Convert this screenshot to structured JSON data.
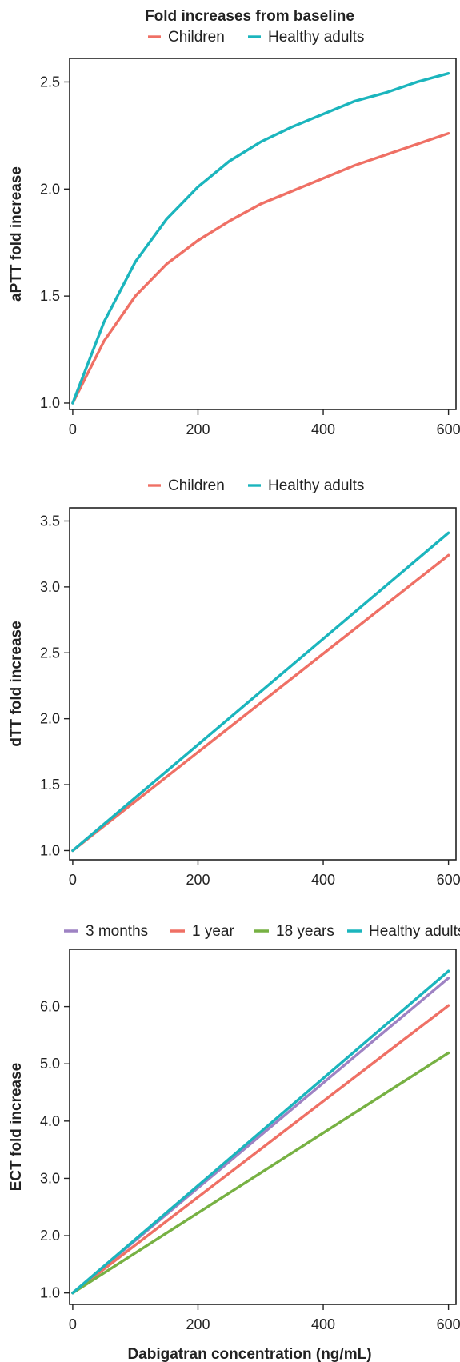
{
  "figure_title": "Fold increases from baseline",
  "x_axis_title": "Dabigatran concentration (ng/mL)",
  "colors": {
    "children": "#ef7065",
    "healthy_adults": "#1bb5bd",
    "three_months": "#9e82c3",
    "one_year": "#ef7065",
    "eighteen_years": "#77b143",
    "axis": "#222222"
  },
  "chart_data": [
    {
      "type": "line",
      "title": "Fold increases from baseline",
      "xlabel": "",
      "ylabel": "aPTT fold increase",
      "xlim": [
        -5,
        612
      ],
      "ylim": [
        0.97,
        2.61
      ],
      "xticks": [
        0,
        200,
        400,
        600
      ],
      "yticks": [
        1.0,
        1.5,
        2.0,
        2.5
      ],
      "ytick_labels": [
        "1.0",
        "1.5",
        "2.0",
        "2.5"
      ],
      "legend": "top, horizontal",
      "x": [
        0,
        50,
        100,
        150,
        200,
        250,
        300,
        350,
        400,
        450,
        500,
        550,
        600
      ],
      "series": [
        {
          "name": "Children",
          "color_key": "children",
          "values": [
            1.0,
            1.29,
            1.5,
            1.65,
            1.76,
            1.85,
            1.93,
            1.99,
            2.05,
            2.11,
            2.16,
            2.21,
            2.26
          ]
        },
        {
          "name": "Healthy adults",
          "color_key": "healthy_adults",
          "values": [
            1.0,
            1.38,
            1.66,
            1.86,
            2.01,
            2.13,
            2.22,
            2.29,
            2.35,
            2.41,
            2.45,
            2.5,
            2.54
          ]
        }
      ]
    },
    {
      "type": "line",
      "title": "",
      "xlabel": "",
      "ylabel": "dTT fold increase",
      "xlim": [
        -5,
        612
      ],
      "ylim": [
        0.93,
        3.6
      ],
      "xticks": [
        0,
        200,
        400,
        600
      ],
      "yticks": [
        1.0,
        1.5,
        2.0,
        2.5,
        3.0,
        3.5
      ],
      "ytick_labels": [
        "1.0",
        "1.5",
        "2.0",
        "2.5",
        "3.0",
        "3.5"
      ],
      "legend": "top, horizontal",
      "x": [
        0,
        600
      ],
      "series": [
        {
          "name": "Children",
          "color_key": "children",
          "values": [
            1.0,
            3.24
          ]
        },
        {
          "name": "Healthy adults",
          "color_key": "healthy_adults",
          "values": [
            1.0,
            3.41
          ]
        }
      ]
    },
    {
      "type": "line",
      "title": "",
      "xlabel": "Dabigatran concentration (ng/mL)",
      "ylabel": "ECT fold increase",
      "xlim": [
        -5,
        612
      ],
      "ylim": [
        0.8,
        7.0
      ],
      "xticks": [
        0,
        200,
        400,
        600
      ],
      "yticks": [
        1.0,
        2.0,
        3.0,
        4.0,
        5.0,
        6.0
      ],
      "ytick_labels": [
        "1.0",
        "2.0",
        "3.0",
        "4.0",
        "5.0",
        "6.0"
      ],
      "legend": "top, horizontal",
      "x": [
        0,
        600
      ],
      "series": [
        {
          "name": "3 months",
          "color_key": "three_months",
          "values": [
            1.0,
            6.5
          ]
        },
        {
          "name": "1 year",
          "color_key": "one_year",
          "values": [
            1.0,
            6.02
          ]
        },
        {
          "name": "18 years",
          "color_key": "eighteen_years",
          "values": [
            1.0,
            5.19
          ]
        },
        {
          "name": "Healthy adults",
          "color_key": "healthy_adults",
          "values": [
            1.0,
            6.62
          ]
        }
      ]
    }
  ]
}
